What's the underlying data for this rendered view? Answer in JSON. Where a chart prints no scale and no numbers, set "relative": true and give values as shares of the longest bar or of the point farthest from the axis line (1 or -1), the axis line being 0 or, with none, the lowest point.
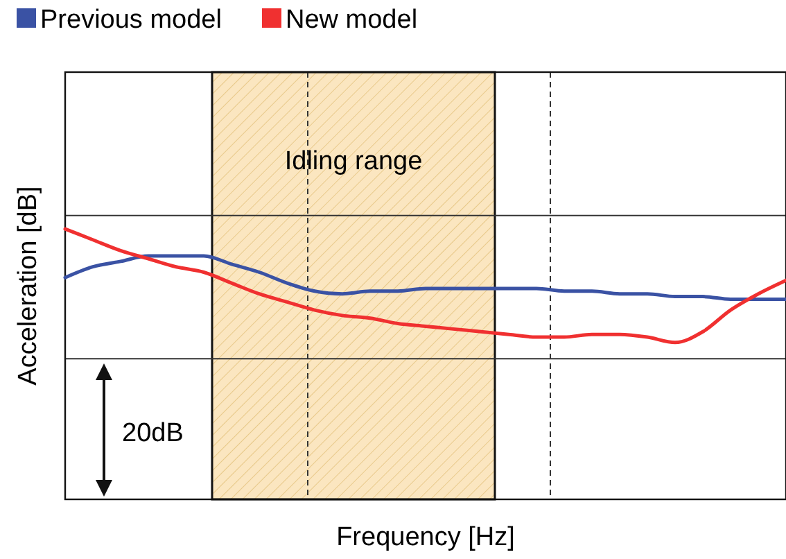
{
  "chart_data": {
    "type": "line",
    "relative": true,
    "xlabel": "Frequency [Hz]",
    "ylabel": "Acceleration [dB]",
    "legend": "top left",
    "annotations": [
      "20dB",
      "Idling range"
    ],
    "categories": [
      null,
      null,
      null,
      null,
      null,
      null,
      null,
      null,
      null,
      null,
      null,
      null,
      null,
      null,
      null,
      null,
      null,
      null,
      null,
      null,
      null,
      null,
      null,
      null,
      null,
      null,
      null
    ],
    "series": [
      {
        "name": "Previous model",
        "color": "#3a52a4",
        "values": [
          0.82,
          0.86,
          0.88,
          0.9,
          0.9,
          0.9,
          0.87,
          0.84,
          0.8,
          0.77,
          0.76,
          0.77,
          0.77,
          0.78,
          0.78,
          0.78,
          0.78,
          0.78,
          0.77,
          0.77,
          0.76,
          0.76,
          0.75,
          0.75,
          0.74,
          0.74,
          0.74
        ]
      },
      {
        "name": "New model",
        "color": "#f03030",
        "values": [
          1.0,
          0.96,
          0.92,
          0.89,
          0.86,
          0.84,
          0.8,
          0.76,
          0.73,
          0.7,
          0.68,
          0.67,
          0.65,
          0.64,
          0.63,
          0.62,
          0.61,
          0.6,
          0.6,
          0.61,
          0.61,
          0.6,
          0.58,
          0.62,
          0.7,
          0.76,
          0.81
        ]
      }
    ],
    "ref_lines": [
      {
        "axis": "y",
        "value": 1.05,
        "color": "#333333",
        "line_style": "solid"
      },
      {
        "axis": "y",
        "value": 0.52,
        "color": "#333333",
        "line_style": "solid"
      }
    ]
  }
}
